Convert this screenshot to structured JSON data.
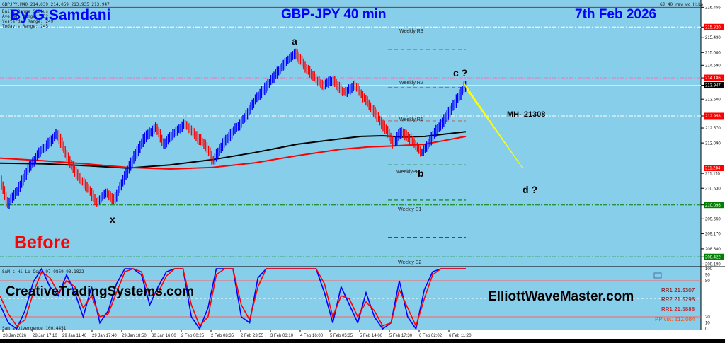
{
  "window": {
    "symbol_line": "GBPJPY,M40 214.039 214.059 213.935 213.947",
    "info_lines": [
      "Daily Range Status",
      "Average Range: 262",
      "Yesterday Range: 249",
      "Today's Range: 245"
    ],
    "indicator_tag": "GJ 40 rev wo HiLo",
    "sub_label_1": "SAM's Hi-Lo Osc. 97.9869 93.1822",
    "sub_label_2": "Sam's Divergence 100.4451"
  },
  "overlay": {
    "author": "By G.Samdani",
    "title": "GBP-JPY 40 min",
    "date": "7th Feb 2026",
    "before": "Before",
    "brand_left": "CreativeTradingSystems.com",
    "brand_right": "ElliottWaveMaster.com",
    "wave_a": "a",
    "wave_b": "b",
    "wave_c": "c ?",
    "wave_d": "d ?",
    "wave_x": "x",
    "mh": "MH- 21308"
  },
  "pivots": {
    "r3": "Weekly R3",
    "r2": "Weekly R2",
    "r1": "Weekly R1",
    "pp": "WeeklyPP",
    "s1": "Weekly S1",
    "s2": "Weekly S2"
  },
  "legend_levels": {
    "rr1": "RR1 21.5307",
    "rr2": "RR2 21.5298",
    "rr3": "RR1 21.5888",
    "pivot": "PPivot: 212.084"
  },
  "colors": {
    "plot_bg": "#87ceeb",
    "bull": "#0000ff",
    "bear": "#ff0000",
    "ma_black": "#000000",
    "ma_red": "#ff0000",
    "title_blue": "#0000ff",
    "before_red": "#ff0000",
    "forecast": "#ffff00"
  },
  "chart_data": [
    {
      "type": "line",
      "title": "GBP-JPY 40 min",
      "subtitle": "price bars (candles colored blue up / red down), two moving averages, weekly pivots, Elliott wave projection",
      "ylim": [
        208.2,
        216.6
      ],
      "y_ticks": [
        216.456,
        215.82,
        215.49,
        215.0,
        214.59,
        214.186,
        213.947,
        213.5,
        212.958,
        212.57,
        212.09,
        211.284,
        211.11,
        210.63,
        210.096,
        209.65,
        209.17,
        208.68,
        208.422,
        208.19
      ],
      "highlighted_ticks": [
        {
          "value": 215.82,
          "color": "#ff0000"
        },
        {
          "value": 214.186,
          "color": "#ff0000"
        },
        {
          "value": 213.947,
          "color": "#000000"
        },
        {
          "value": 212.958,
          "color": "#ff0000"
        },
        {
          "value": 211.284,
          "color": "#ff0000"
        },
        {
          "value": 210.096,
          "color": "#008000"
        },
        {
          "value": 208.422,
          "color": "#008000"
        }
      ],
      "x_tick_labels": [
        "28 Jan 2026",
        "28 Jan 17:10",
        "29 Jan 11:40",
        "29 Jan 17:40",
        "29 Jan 18:50",
        "30 Jan 16:00",
        "2 Feb 00:25",
        "2 Feb 08:35",
        "2 Feb 23:55",
        "3 Feb 03:10",
        "4 Feb 16:00",
        "5 Feb 05:35",
        "5 Feb 14:00",
        "5 Feb 17:30",
        "6 Feb 02:02",
        "6 Feb 11:20"
      ],
      "price_path": [
        [
          0,
          210.9
        ],
        [
          10,
          210.1
        ],
        [
          25,
          210.6
        ],
        [
          40,
          211.3
        ],
        [
          55,
          211.8
        ],
        [
          65,
          212.0
        ],
        [
          80,
          212.4
        ],
        [
          95,
          211.6
        ],
        [
          110,
          211.0
        ],
        [
          125,
          210.6
        ],
        [
          135,
          210.15
        ],
        [
          150,
          210.5
        ],
        [
          160,
          210.25
        ],
        [
          175,
          211.0
        ],
        [
          190,
          211.7
        ],
        [
          205,
          212.3
        ],
        [
          220,
          212.6
        ],
        [
          230,
          212.05
        ],
        [
          245,
          212.4
        ],
        [
          260,
          212.7
        ],
        [
          275,
          212.35
        ],
        [
          290,
          212.0
        ],
        [
          300,
          211.5
        ],
        [
          315,
          212.1
        ],
        [
          330,
          212.5
        ],
        [
          345,
          212.9
        ],
        [
          360,
          213.5
        ],
        [
          375,
          213.9
        ],
        [
          390,
          214.35
        ],
        [
          405,
          214.75
        ],
        [
          416,
          215.0
        ],
        [
          430,
          214.55
        ],
        [
          445,
          214.15
        ],
        [
          455,
          213.95
        ],
        [
          470,
          214.1
        ],
        [
          485,
          213.7
        ],
        [
          500,
          213.95
        ],
        [
          515,
          213.5
        ],
        [
          530,
          213.0
        ],
        [
          545,
          212.5
        ],
        [
          555,
          212.05
        ],
        [
          565,
          212.45
        ],
        [
          580,
          212.2
        ],
        [
          595,
          211.75
        ],
        [
          610,
          212.3
        ],
        [
          625,
          212.8
        ],
        [
          640,
          213.3
        ],
        [
          650,
          213.7
        ],
        [
          658,
          214.0
        ]
      ],
      "series": [
        {
          "name": "Black MA",
          "color": "#000000",
          "points": [
            [
              0,
              211.44
            ],
            [
              60,
              211.42
            ],
            [
              120,
              211.36
            ],
            [
              180,
              211.28
            ],
            [
              240,
              211.38
            ],
            [
              300,
              211.55
            ],
            [
              360,
              211.78
            ],
            [
              420,
              212.05
            ],
            [
              480,
              212.22
            ],
            [
              510,
              212.3
            ],
            [
              540,
              212.32
            ],
            [
              570,
              212.28
            ],
            [
              600,
              212.3
            ],
            [
              630,
              212.38
            ],
            [
              658,
              212.45
            ]
          ]
        },
        {
          "name": "Red MA",
          "color": "#ff0000",
          "points": [
            [
              0,
              211.6
            ],
            [
              60,
              211.52
            ],
            [
              120,
              211.42
            ],
            [
              180,
              211.3
            ],
            [
              240,
              211.25
            ],
            [
              300,
              211.3
            ],
            [
              360,
              211.45
            ],
            [
              420,
              211.68
            ],
            [
              480,
              211.88
            ],
            [
              520,
              211.96
            ],
            [
              560,
              212.0
            ],
            [
              600,
              212.05
            ],
            [
              630,
              212.18
            ],
            [
              658,
              212.3
            ]
          ]
        }
      ],
      "forecast_wedge": [
        [
          656,
          214.0
        ],
        [
          738,
          211.284
        ],
        [
          660,
          213.78
        ]
      ],
      "pivot_levels": [
        {
          "name": "Weekly R3",
          "value": 215.1,
          "color": "#b07070"
        },
        {
          "name": "Weekly R2",
          "value": 213.88,
          "color": "#b07070"
        },
        {
          "name": "Weekly R1",
          "value": 212.8,
          "color": "#b07070"
        },
        {
          "name": "WeeklyPP",
          "value": 211.38,
          "color": "#006400"
        },
        {
          "name": "Weekly S1",
          "value": 210.25,
          "color": "#008000"
        },
        {
          "name": "Weekly S2",
          "value": 209.05,
          "color": "#008000"
        }
      ],
      "horizontal_lines": [
        {
          "value": 216.456,
          "color": "#a52a2a"
        },
        {
          "value": 215.82,
          "color": "#ffffff",
          "style": "dashdot"
        },
        {
          "value": 214.186,
          "color": "#ff69b4",
          "style": "dashdot"
        },
        {
          "value": 213.947,
          "color": "#ffff00"
        },
        {
          "value": 212.958,
          "color": "#ffffff",
          "style": "dashdot"
        },
        {
          "value": 211.284,
          "color": "#ff0000"
        },
        {
          "value": 210.096,
          "color": "#008000",
          "style": "dashdot"
        },
        {
          "value": 208.422,
          "color": "#008000",
          "style": "dashdot"
        }
      ]
    },
    {
      "type": "line",
      "title": "SAM's Hi-Lo Osc. 97.9869 93.1822",
      "ylim": [
        0,
        100
      ],
      "y_ticks": [
        100,
        90,
        80,
        20,
        10,
        0
      ],
      "levels": [
        80,
        20
      ],
      "series": [
        {
          "name": "fast",
          "color": "#0000ff",
          "values": [
            40,
            10,
            0,
            30,
            78,
            100,
            70,
            55,
            90,
            60,
            20,
            70,
            10,
            30,
            75,
            100,
            100,
            90,
            40,
            70,
            95,
            100,
            100,
            20,
            0,
            35,
            100,
            100,
            100,
            20,
            10,
            85,
            100,
            100,
            100,
            100,
            100,
            100,
            100,
            60,
            10,
            70,
            40,
            10,
            60,
            20,
            0,
            10,
            80,
            20,
            0,
            65,
            95,
            100,
            100,
            100,
            100
          ]
        },
        {
          "name": "slow",
          "color": "#ff0000",
          "values": [
            55,
            25,
            5,
            15,
            60,
            95,
            85,
            60,
            80,
            70,
            35,
            55,
            20,
            25,
            60,
            95,
            100,
            95,
            55,
            60,
            88,
            100,
            100,
            40,
            5,
            20,
            90,
            100,
            100,
            40,
            15,
            70,
            100,
            100,
            100,
            100,
            100,
            100,
            100,
            75,
            20,
            55,
            50,
            20,
            45,
            30,
            5,
            10,
            65,
            35,
            5,
            50,
            90,
            100,
            100,
            100,
            100
          ]
        }
      ]
    }
  ]
}
